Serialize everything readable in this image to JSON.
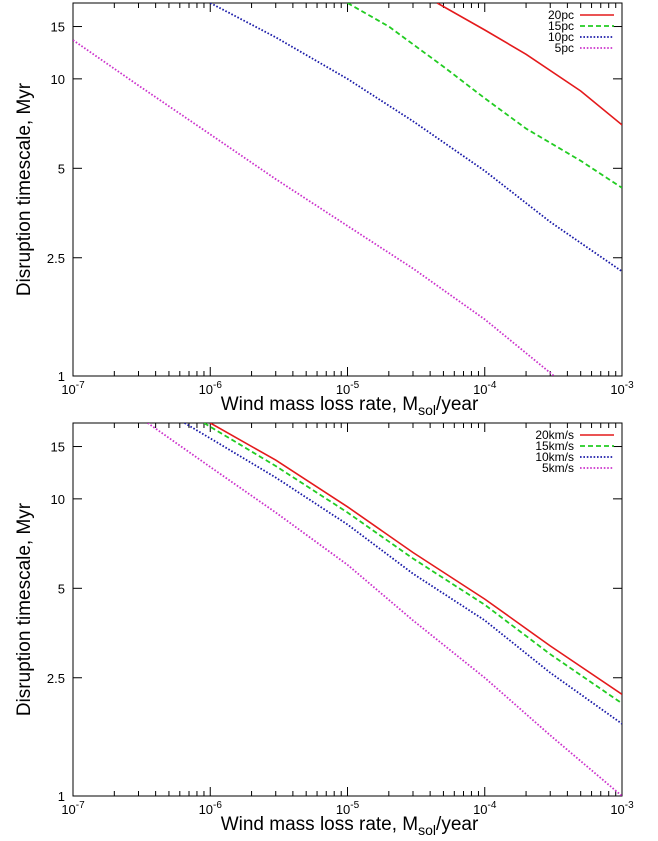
{
  "chart_data": [
    {
      "type": "line",
      "xlabel": "Wind mass loss rate, M",
      "xlabel_sub": "sol",
      "xlabel_tail": "/year",
      "ylabel": "Disruption timescale, Myr",
      "xscale": "log",
      "yscale": "log",
      "xlim": [
        1e-07,
        0.001
      ],
      "ylim": [
        1,
        18
      ],
      "x_ticks": [
        {
          "v": 1e-07,
          "mant": "10",
          "exp": "-7"
        },
        {
          "v": 1e-06,
          "mant": "10",
          "exp": "-6"
        },
        {
          "v": 1e-05,
          "mant": "10",
          "exp": "-5"
        },
        {
          "v": 0.0001,
          "mant": "10",
          "exp": "-4"
        },
        {
          "v": 0.001,
          "mant": "10",
          "exp": "-3"
        }
      ],
      "y_ticks": [
        {
          "v": 1,
          "label": "1"
        },
        {
          "v": 2.5,
          "label": "2.5"
        },
        {
          "v": 5,
          "label": "5"
        },
        {
          "v": 10,
          "label": "10"
        },
        {
          "v": 15,
          "label": "15"
        }
      ],
      "legend_position": "top-right",
      "series": [
        {
          "name": "20pc",
          "color": "#e41a1c",
          "dash": "solid",
          "points": [
            [
              4.5e-05,
              18
            ],
            [
              0.0001,
              14.6
            ],
            [
              0.0002,
              12.1
            ],
            [
              0.0005,
              9.1
            ],
            [
              0.001,
              7.0
            ]
          ]
        },
        {
          "name": "15pc",
          "color": "#22cc22",
          "dash": "dashed",
          "points": [
            [
              1e-05,
              18
            ],
            [
              2e-05,
              15.0
            ],
            [
              5e-05,
              11.0
            ],
            [
              0.0001,
              8.6
            ],
            [
              0.0002,
              6.8
            ],
            [
              0.0005,
              5.3
            ],
            [
              0.001,
              4.3
            ]
          ]
        },
        {
          "name": "10pc",
          "color": "#1a1aa8",
          "dash": "dotted",
          "points": [
            [
              1e-06,
              18
            ],
            [
              3e-06,
              13.8
            ],
            [
              1e-05,
              10.0
            ],
            [
              3e-05,
              7.2
            ],
            [
              0.0001,
              4.9
            ],
            [
              0.0003,
              3.3
            ],
            [
              0.001,
              2.25
            ]
          ]
        },
        {
          "name": "5pc",
          "color": "#cc33cc",
          "dash": "dotted",
          "points": [
            [
              1e-07,
              13.5
            ],
            [
              3e-07,
              9.5
            ],
            [
              1e-06,
              6.5
            ],
            [
              3e-06,
              4.6
            ],
            [
              1e-05,
              3.2
            ],
            [
              3e-05,
              2.3
            ],
            [
              0.0001,
              1.55
            ],
            [
              0.00032,
              1.0
            ]
          ]
        }
      ]
    },
    {
      "type": "line",
      "xlabel": "Wind mass loss rate, M",
      "xlabel_sub": "sol",
      "xlabel_tail": "/year",
      "ylabel": "Disruption timescale, Myr",
      "xscale": "log",
      "yscale": "log",
      "xlim": [
        1e-07,
        0.001
      ],
      "ylim": [
        1,
        18
      ],
      "x_ticks": [
        {
          "v": 1e-07,
          "mant": "10",
          "exp": "-7"
        },
        {
          "v": 1e-06,
          "mant": "10",
          "exp": "-6"
        },
        {
          "v": 1e-05,
          "mant": "10",
          "exp": "-5"
        },
        {
          "v": 0.0001,
          "mant": "10",
          "exp": "-4"
        },
        {
          "v": 0.001,
          "mant": "10",
          "exp": "-3"
        }
      ],
      "y_ticks": [
        {
          "v": 1,
          "label": "1"
        },
        {
          "v": 2.5,
          "label": "2.5"
        },
        {
          "v": 5,
          "label": "5"
        },
        {
          "v": 10,
          "label": "10"
        },
        {
          "v": 15,
          "label": "15"
        }
      ],
      "legend_position": "top-right",
      "series": [
        {
          "name": "20km/s",
          "color": "#e41a1c",
          "dash": "solid",
          "points": [
            [
              1e-06,
              18
            ],
            [
              3e-06,
              13.5
            ],
            [
              1e-05,
              9.4
            ],
            [
              3e-05,
              6.6
            ],
            [
              0.0001,
              4.6
            ],
            [
              0.0003,
              3.2
            ],
            [
              0.001,
              2.2
            ]
          ]
        },
        {
          "name": "15km/s",
          "color": "#22cc22",
          "dash": "dashed",
          "points": [
            [
              9e-07,
              18
            ],
            [
              3e-06,
              12.9
            ],
            [
              1e-05,
              9.0
            ],
            [
              3e-05,
              6.3
            ],
            [
              0.0001,
              4.4
            ],
            [
              0.0003,
              3.0
            ],
            [
              0.001,
              2.05
            ]
          ]
        },
        {
          "name": "10km/s",
          "color": "#1a1aa8",
          "dash": "dotted",
          "points": [
            [
              6.5e-07,
              18
            ],
            [
              3e-06,
              11.8
            ],
            [
              1e-05,
              8.2
            ],
            [
              3e-05,
              5.6
            ],
            [
              0.0001,
              3.9
            ],
            [
              0.0003,
              2.6
            ],
            [
              0.001,
              1.75
            ]
          ]
        },
        {
          "name": "5km/s",
          "color": "#cc33cc",
          "dash": "dotted",
          "points": [
            [
              3.5e-07,
              18
            ],
            [
              1e-06,
              12.8
            ],
            [
              3e-06,
              9.0
            ],
            [
              1e-05,
              6.0
            ],
            [
              3e-05,
              3.9
            ],
            [
              0.0001,
              2.5
            ],
            [
              0.0003,
              1.6
            ],
            [
              0.001,
              1.0
            ]
          ]
        }
      ]
    }
  ]
}
